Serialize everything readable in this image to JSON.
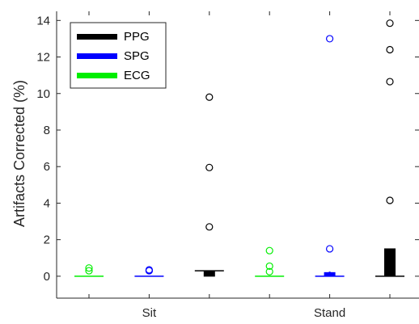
{
  "chart_data": {
    "type": "box",
    "title": "",
    "xlabel": "",
    "ylabel": "Artifacts Corrected (%)",
    "ylim": [
      -1.2,
      14.5
    ],
    "yticks": [
      0,
      2,
      4,
      6,
      8,
      10,
      12,
      14
    ],
    "xticks": [
      {
        "label": "Sit",
        "position": 2
      },
      {
        "label": "Stand",
        "position": 5
      }
    ],
    "legend": {
      "location": "top-left",
      "entries": [
        {
          "name": "PPG",
          "color": "#000000"
        },
        {
          "name": "SPG",
          "color": "#0000ff"
        },
        {
          "name": "ECG",
          "color": "#00ee00"
        }
      ]
    },
    "groups": [
      {
        "position": 1,
        "condition": "Sit",
        "signal": "ECG",
        "color": "#00ee00",
        "q1": 0,
        "median": 0,
        "q3": 0,
        "whisker_high": 0,
        "outliers": [
          0.3,
          0.45
        ]
      },
      {
        "position": 2,
        "condition": "Sit",
        "signal": "SPG",
        "color": "#0000ff",
        "q1": 0,
        "median": 0,
        "q3": 0,
        "whisker_high": 0,
        "outliers": [
          0.3,
          0.35
        ]
      },
      {
        "position": 3,
        "condition": "Sit",
        "signal": "PPG",
        "color": "#000000",
        "q1": 0,
        "median": 0.3,
        "q3": 0.3,
        "whisker_high": 0.3,
        "outliers": [
          2.7,
          5.95,
          9.8
        ]
      },
      {
        "position": 4,
        "condition": "Stand",
        "signal": "ECG",
        "color": "#00ee00",
        "q1": 0,
        "median": 0,
        "q3": 0,
        "whisker_high": 0,
        "outliers": [
          0.25,
          0.55,
          1.4
        ]
      },
      {
        "position": 5,
        "condition": "Stand",
        "signal": "SPG",
        "color": "#0000ff",
        "q1": 0,
        "median": 0,
        "q3": 0.2,
        "whisker_high": 0.25,
        "outliers": [
          1.5,
          13.0
        ]
      },
      {
        "position": 6,
        "condition": "Stand",
        "signal": "PPG",
        "color": "#000000",
        "q1": 0,
        "median": 0,
        "q3": 1.5,
        "whisker_high": 1.5,
        "outliers": [
          4.15,
          10.65,
          12.4,
          13.85
        ]
      }
    ]
  }
}
